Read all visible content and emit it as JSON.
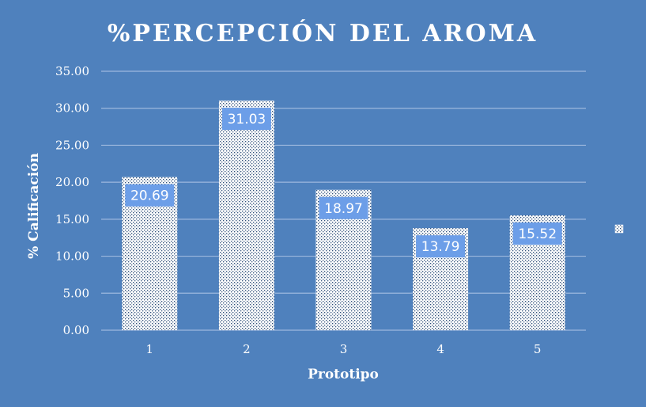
{
  "chart_data": {
    "type": "bar",
    "title": "%PERCEPCIÓN DEL AROMA",
    "xlabel": "Prototipo",
    "ylabel": "% Calificación",
    "categories": [
      "1",
      "2",
      "3",
      "4",
      "5"
    ],
    "values": [
      20.69,
      31.03,
      18.97,
      13.79,
      15.52
    ],
    "data_labels": [
      "20.69",
      "31.03",
      "18.97",
      "13.79",
      "15.52"
    ],
    "ylim": [
      0,
      35
    ],
    "yticks": [
      "0.00",
      "5.00",
      "10.00",
      "15.00",
      "20.00",
      "25.00",
      "30.00",
      "35.00"
    ],
    "grid": true,
    "legend_position": "right",
    "colors": {
      "background": "#4F81BD",
      "bar_pattern": "white-dotted-hatch",
      "label_box": "#6C9EE8",
      "gridline": "#9DB8DE"
    }
  }
}
